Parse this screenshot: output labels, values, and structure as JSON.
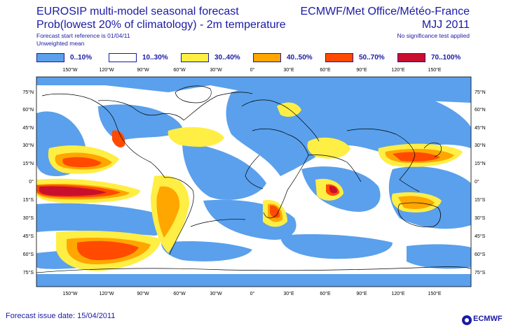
{
  "header": {
    "title_line1": "EUROSIP multi-model seasonal forecast",
    "title_line2": "Prob(lowest 20% of climatology) - 2m temperature",
    "forecast_reference": "Forecast start reference is 01/04/11",
    "weighting": "Unweighted mean",
    "organisations": "ECMWF/Met Office/Météo-France",
    "season": "MJJ 2011",
    "significance": "No significance test applied"
  },
  "legend": [
    {
      "label": "0..10%",
      "color": "#5aa0ec"
    },
    {
      "label": "10..30%",
      "color": "#ffffff"
    },
    {
      "label": "30..40%",
      "color": "#ffee44"
    },
    {
      "label": "40..50%",
      "color": "#ffa600"
    },
    {
      "label": "50..70%",
      "color": "#ff4a00"
    },
    {
      "label": "70..100%",
      "color": "#c8102e"
    }
  ],
  "map": {
    "lon_labels": [
      "150°W",
      "120°W",
      "90°W",
      "60°W",
      "30°W",
      "0°",
      "30°E",
      "60°E",
      "90°E",
      "120°E",
      "150°E"
    ],
    "lat_labels": [
      "75°N",
      "60°N",
      "45°N",
      "30°N",
      "15°N",
      "0°",
      "15°S",
      "30°S",
      "45°S",
      "60°S",
      "75°S"
    ]
  },
  "footer": {
    "issue_date": "Forecast issue date: 15/04/2011",
    "logo_text": "ECMWF"
  }
}
